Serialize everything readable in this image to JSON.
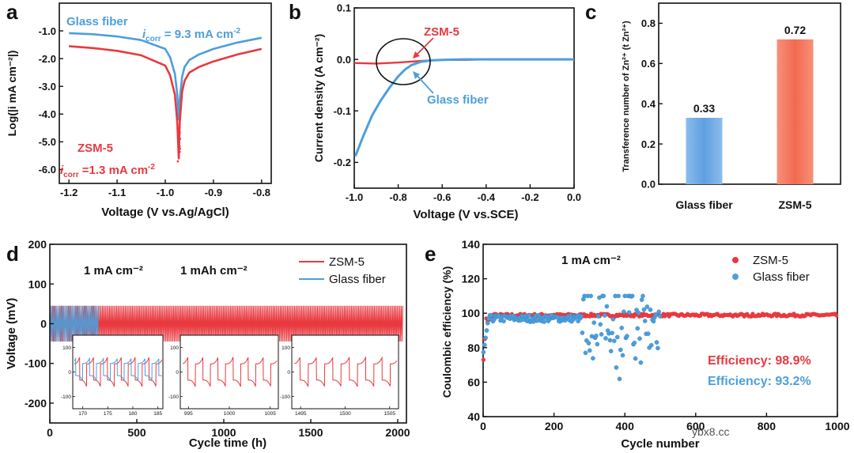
{
  "colors": {
    "zsm": "#e8393f",
    "gf": "#4c9fdc",
    "axis": "#111111"
  },
  "watermark": "ybx8.cc",
  "chart_data": [
    {
      "id": "a",
      "type": "line",
      "panel_label": "a",
      "xlabel": "Voltage (V vs.Ag/AgCl)",
      "ylabel": "Log(|i mA cm⁻²|)",
      "xlim": [
        -1.22,
        -0.78
      ],
      "ylim": [
        -6.5,
        0
      ],
      "xticks": [
        -1.2,
        -1.1,
        -1.0,
        -0.9,
        -0.8
      ],
      "xtick_labels": [
        "-1.2",
        "-1.1",
        "-1.0",
        "-0.9",
        "-0.8"
      ],
      "yticks": [
        -1,
        -2,
        -3,
        -4,
        -5,
        -6
      ],
      "ytick_labels": [
        "-1.0",
        "-2.0",
        "-3.0",
        "-4.0",
        "-5.0",
        "-6.0"
      ],
      "series": [
        {
          "name": "Glass fiber",
          "color_key": "gf",
          "x": [
            -1.2,
            -1.15,
            -1.1,
            -1.05,
            -1.0,
            -0.99,
            -0.98,
            -0.975,
            -0.972,
            -0.97,
            -0.965,
            -0.96,
            -0.95,
            -0.93,
            -0.9,
            -0.85,
            -0.8
          ],
          "y": [
            -1.08,
            -1.12,
            -1.2,
            -1.33,
            -1.65,
            -1.95,
            -2.55,
            -3.3,
            -4.2,
            -3.5,
            -2.65,
            -2.3,
            -2.05,
            -1.85,
            -1.65,
            -1.42,
            -1.25
          ]
        },
        {
          "name": "ZSM-5",
          "color_key": "zsm",
          "x": [
            -1.2,
            -1.15,
            -1.1,
            -1.05,
            -1.0,
            -0.99,
            -0.98,
            -0.975,
            -0.972,
            -0.97,
            -0.965,
            -0.96,
            -0.95,
            -0.93,
            -0.9,
            -0.85,
            -0.8
          ],
          "y": [
            -1.55,
            -1.62,
            -1.72,
            -1.88,
            -2.25,
            -2.6,
            -3.3,
            -4.3,
            -5.6,
            -4.3,
            -3.2,
            -2.8,
            -2.5,
            -2.3,
            -2.1,
            -1.85,
            -1.65
          ]
        }
      ],
      "annotations": [
        {
          "text": "Glass fiber",
          "color_key": "gf",
          "x": -1.2,
          "y": -0.45
        },
        {
          "text": "ZSM-5",
          "color_key": "zsm",
          "x": -1.2,
          "y": -4.95
        }
      ],
      "icorr_gf": {
        "prefix": "i",
        "sub": "corr",
        "text": " = 9.3 mA cm",
        "sup": "-2"
      },
      "icorr_zsm": {
        "prefix": "i",
        "sub": "corr",
        "text": " =1.3 mA cm",
        "sup": "-2"
      }
    },
    {
      "id": "b",
      "type": "line",
      "panel_label": "b",
      "xlabel": "Voltage (V vs.SCE)",
      "ylabel": "Current density (A cm⁻²)",
      "xlim": [
        -1.0,
        0.0
      ],
      "ylim": [
        -0.25,
        0.1
      ],
      "xticks": [
        -1.0,
        -0.8,
        -0.6,
        -0.4,
        -0.2,
        0.0
      ],
      "xtick_labels": [
        "-1.0",
        "-0.8",
        "-0.6",
        "-0.4",
        "-0.2",
        "0.0"
      ],
      "yticks": [
        0.1,
        0.0,
        -0.1,
        -0.2
      ],
      "ytick_labels": [
        "0.1",
        "0.0",
        "-0.1",
        "-0.2"
      ],
      "series": [
        {
          "name": "ZSM-5",
          "color_key": "zsm",
          "x": [
            -1.0,
            -0.9,
            -0.8,
            -0.7,
            -0.6,
            -0.5,
            -0.4,
            -0.3,
            -0.2,
            -0.1,
            0.0
          ],
          "y": [
            -0.007,
            -0.008,
            -0.006,
            -0.003,
            -0.001,
            -0.001,
            0.0,
            0.0,
            0.0,
            0.0,
            0.0
          ]
        },
        {
          "name": "Glass fiber",
          "color_key": "gf",
          "x": [
            -0.995,
            -0.96,
            -0.92,
            -0.88,
            -0.84,
            -0.8,
            -0.77,
            -0.74,
            -0.7,
            -0.65,
            -0.6,
            -0.5,
            -0.4,
            -0.3,
            -0.2,
            -0.1,
            0.0
          ],
          "y": [
            -0.188,
            -0.15,
            -0.11,
            -0.08,
            -0.055,
            -0.033,
            -0.02,
            -0.011,
            -0.005,
            -0.002,
            -0.001,
            0.0,
            0.0,
            0.0,
            0.0,
            0.0,
            0.0
          ]
        }
      ],
      "annotations": [
        {
          "text": "ZSM-5",
          "color_key": "zsm",
          "x": -0.74,
          "y": 0.054
        },
        {
          "text": "Glass fiber",
          "color_key": "gf",
          "x": -0.72,
          "y": -0.085
        }
      ]
    },
    {
      "id": "c",
      "type": "bar",
      "panel_label": "c",
      "categories": [
        "Glass fiber",
        "ZSM-5"
      ],
      "values": [
        0.33,
        0.72
      ],
      "value_labels": [
        "0.33",
        "0.72"
      ],
      "ylabel": "Transference number of Zn²⁺ (t Zn²⁺)",
      "ylim": [
        0,
        0.9
      ],
      "yticks": [
        0,
        0.2,
        0.4,
        0.6,
        0.8
      ],
      "ytick_labels": [
        "0.0",
        "0.2",
        "0.4",
        "0.6",
        "0.8"
      ],
      "bar_color_keys": [
        "gf",
        "zsm"
      ],
      "bar_colors": [
        "#6ea8e2",
        "#f2735a"
      ]
    },
    {
      "id": "d",
      "type": "line",
      "panel_label": "d",
      "xlabel": "Cycle time (h)",
      "ylabel": "Voltage (mV)",
      "xlim": [
        0,
        2050
      ],
      "ylim": [
        -250,
        200
      ],
      "xticks": [
        0,
        500,
        1000,
        1500,
        2000
      ],
      "xtick_labels": [
        "0",
        "500",
        "1000",
        "1500",
        "2000"
      ],
      "yticks": [
        200,
        100,
        0,
        -100,
        -200
      ],
      "ytick_labels": [
        "200",
        "100",
        "0",
        "-100",
        "-200"
      ],
      "series": [
        {
          "name": "ZSM-5",
          "color_key": "zsm",
          "x_range": [
            0,
            2030
          ],
          "amplitude_mV": 45
        },
        {
          "name": "Glass fiber",
          "color_key": "gf",
          "x_range": [
            0,
            280
          ],
          "amplitude_mV": 45
        }
      ],
      "conditions": [
        "1 mA cm⁻²",
        "1 mAh cm⁻²"
      ],
      "insets": [
        {
          "xlim": [
            168,
            186
          ],
          "xticks": [
            170,
            175,
            180,
            185
          ],
          "xtick_labels": [
            "170",
            "175",
            "180",
            "185"
          ],
          "yticks": [
            100,
            0,
            -100
          ],
          "ytick_labels": [
            "100",
            "0",
            "-100"
          ],
          "with_gf": true
        },
        {
          "xlim": [
            994,
            1006
          ],
          "xticks": [
            995,
            1000,
            1005
          ],
          "xtick_labels": [
            "995",
            "1000",
            "1005"
          ],
          "yticks": [
            100,
            0,
            -100
          ],
          "ytick_labels": [
            "100",
            "0",
            "-100"
          ],
          "with_gf": false
        },
        {
          "xlim": [
            1494,
            1506
          ],
          "xticks": [
            1495,
            1500,
            1505
          ],
          "xtick_labels": [
            "1495",
            "1500",
            "1505"
          ],
          "yticks": [
            100,
            0,
            -100
          ],
          "ytick_labels": [
            "100",
            "0",
            "-100"
          ],
          "with_gf": false
        }
      ]
    },
    {
      "id": "e",
      "type": "scatter",
      "panel_label": "e",
      "xlabel": "Cycle number",
      "ylabel": "Coulombic efficiency (%)",
      "xlim": [
        0,
        1000
      ],
      "ylim": [
        40,
        140
      ],
      "xticks": [
        0,
        200,
        400,
        600,
        800,
        1000
      ],
      "xtick_labels": [
        "0",
        "200",
        "400",
        "600",
        "800",
        "1000"
      ],
      "yticks": [
        40,
        60,
        80,
        100,
        120,
        140
      ],
      "ytick_labels": [
        "40",
        "60",
        "80",
        "100",
        "120",
        "140"
      ],
      "series": [
        {
          "name": "ZSM-5",
          "color_key": "zsm",
          "cycles": 1000,
          "mean_efficiency": 98.9
        },
        {
          "name": "Glass fiber",
          "color_key": "gf",
          "cycles": 500,
          "mean_efficiency": 93.2,
          "scatter_range": [
            280,
            500
          ]
        }
      ],
      "condition": "1 mA cm⁻²",
      "efficiency_labels": [
        {
          "text": "Efficiency: 98.9%",
          "color_key": "zsm"
        },
        {
          "text": "Efficiency: 93.2%",
          "color_key": "gf"
        }
      ]
    }
  ]
}
